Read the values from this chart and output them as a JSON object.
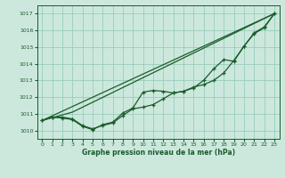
{
  "bg_color": "#cce8dd",
  "grid_color": "#99ccbb",
  "line_color": "#1a5c2a",
  "xlabel": "Graphe pression niveau de la mer (hPa)",
  "xlim": [
    -0.5,
    23.5
  ],
  "ylim": [
    1009.5,
    1017.5
  ],
  "yticks": [
    1010,
    1011,
    1012,
    1013,
    1014,
    1015,
    1016,
    1017
  ],
  "xticks": [
    0,
    1,
    2,
    3,
    4,
    5,
    6,
    7,
    8,
    9,
    10,
    11,
    12,
    13,
    14,
    15,
    16,
    17,
    18,
    19,
    20,
    21,
    22,
    23
  ],
  "series1_x": [
    0,
    1,
    2,
    3,
    4,
    5,
    6,
    7,
    8,
    9,
    10,
    11,
    12,
    13,
    14,
    15,
    16,
    17,
    18,
    19,
    20,
    21,
    22,
    23
  ],
  "series1_y": [
    1010.6,
    1010.8,
    1010.8,
    1010.7,
    1010.3,
    1010.1,
    1010.3,
    1010.45,
    1010.9,
    1011.3,
    1011.4,
    1011.55,
    1011.9,
    1012.25,
    1012.35,
    1012.6,
    1012.75,
    1013.0,
    1013.45,
    1014.2,
    1015.05,
    1015.85,
    1016.2,
    1017.0
  ],
  "series2_x": [
    0,
    1,
    2,
    3,
    4,
    5,
    6,
    7,
    8,
    9,
    10,
    11,
    12,
    13,
    14,
    15,
    16,
    17,
    18,
    19,
    20,
    21,
    22,
    23
  ],
  "series2_y": [
    1010.6,
    1010.8,
    1010.75,
    1010.65,
    1010.25,
    1010.05,
    1010.35,
    1010.5,
    1011.05,
    1011.35,
    1012.3,
    1012.4,
    1012.35,
    1012.25,
    1012.35,
    1012.55,
    1013.0,
    1013.7,
    1014.25,
    1014.15,
    1015.05,
    1015.8,
    1016.15,
    1017.0
  ],
  "series3_x": [
    0,
    23
  ],
  "series3_y": [
    1010.6,
    1017.0
  ],
  "series4_x": [
    0,
    3,
    23
  ],
  "series4_y": [
    1010.6,
    1011.1,
    1017.0
  ]
}
